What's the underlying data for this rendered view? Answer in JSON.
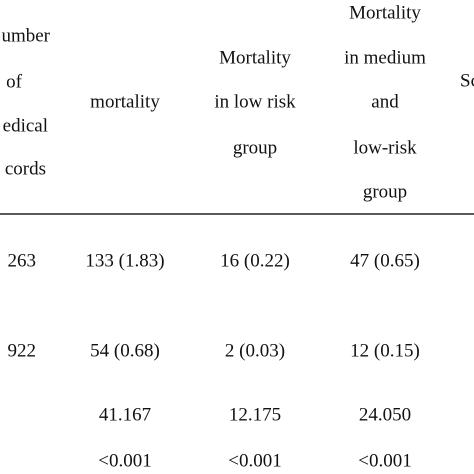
{
  "table": {
    "header": [
      [
        "umber",
        "of",
        "edical",
        "cords"
      ],
      [
        "mortality"
      ],
      [
        "Mortality",
        "in low risk",
        "group"
      ],
      [
        "Mortality",
        "in medium",
        "and",
        "low-risk",
        "group"
      ],
      [
        "Sc"
      ]
    ],
    "rows": [
      [
        "263",
        "133 (1.83)",
        "16 (0.22)",
        "47 (0.65)"
      ],
      [
        "922",
        "54 (0.68)",
        "2 (0.03)",
        "12 (0.15)"
      ],
      [
        null,
        "41.167",
        "12.175",
        "24.050"
      ],
      [
        null,
        "<0.001",
        "<0.001",
        "<0.001"
      ]
    ]
  }
}
